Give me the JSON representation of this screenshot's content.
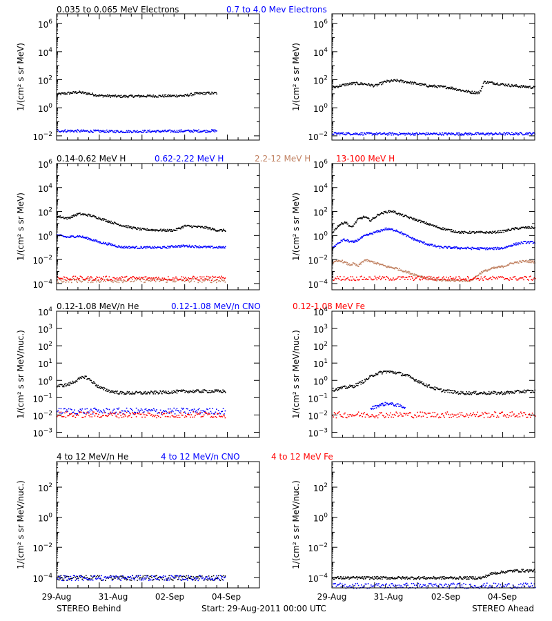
{
  "colors": {
    "black": "#000000",
    "blue": "#0000ff",
    "tan": "#c08060",
    "red": "#ff0000"
  },
  "footer": {
    "left": "STEREO Behind",
    "center": "Start: 29-Aug-2011 00:00 UTC",
    "right": "STEREO Ahead"
  },
  "x_tick_labels": [
    "29-Aug",
    "31-Aug",
    "02-Sep",
    "04-Sep"
  ],
  "chart_data": [
    {
      "type": "scatter",
      "panel": "electrons-behind",
      "y_scale": "log",
      "ylim": [
        0.005,
        5000000
      ],
      "y_tick_exponents": [
        -2,
        0,
        2,
        4,
        6
      ],
      "ylabel": "1/(cm² s sr MeV)",
      "x": [
        "2011-08-29",
        "2011-09-05T12:00"
      ],
      "series": [
        {
          "name": "0.035 to 0.065 MeV Electrons",
          "color": "black",
          "points": [
            [
              0,
              10
            ],
            [
              0.5,
              12
            ],
            [
              1,
              14
            ],
            [
              1.5,
              11
            ],
            [
              2,
              8
            ],
            [
              3,
              7
            ],
            [
              4,
              7.5
            ],
            [
              5,
              7.5
            ],
            [
              6,
              8
            ],
            [
              6.5,
              11
            ],
            [
              7,
              12
            ],
            [
              7.5,
              12
            ]
          ]
        },
        {
          "name": "0.7 to 4.0 Mev Electrons",
          "color": "blue",
          "points": [
            [
              0,
              0.025
            ],
            [
              1,
              0.024
            ],
            [
              2,
              0.023
            ],
            [
              3,
              0.022
            ],
            [
              4,
              0.023
            ],
            [
              5,
              0.023
            ],
            [
              6,
              0.024
            ],
            [
              7,
              0.024
            ],
            [
              7.5,
              0.025
            ]
          ]
        }
      ]
    },
    {
      "type": "scatter",
      "panel": "electrons-ahead",
      "y_scale": "log",
      "ylim": [
        0.005,
        5000000
      ],
      "y_tick_exponents": [
        -2,
        0,
        2,
        4,
        6
      ],
      "ylabel": "1/(cm² s sr MeV)",
      "x": [
        "2011-08-29",
        "2011-09-05T12:00"
      ],
      "series": [
        {
          "name": "0.035 to 0.065 MeV Electrons",
          "color": "black",
          "points": [
            [
              0,
              30
            ],
            [
              0.5,
              45
            ],
            [
              1,
              60
            ],
            [
              1.5,
              55
            ],
            [
              2,
              40
            ],
            [
              2.5,
              80
            ],
            [
              3,
              95
            ],
            [
              3.5,
              75
            ],
            [
              4,
              55
            ],
            [
              4.5,
              40
            ],
            [
              5,
              35
            ],
            [
              5.5,
              30
            ],
            [
              6,
              20
            ],
            [
              6.5,
              14
            ],
            [
              6.9,
              13
            ],
            [
              7.1,
              75
            ],
            [
              7.5,
              65
            ],
            [
              8,
              50
            ],
            [
              8.5,
              40
            ],
            [
              9,
              35
            ],
            [
              9.5,
              30
            ]
          ]
        },
        {
          "name": "0.7 to 4.0 Mev Electrons",
          "color": "blue",
          "points": [
            [
              0,
              0.016
            ],
            [
              2,
              0.015
            ],
            [
              4,
              0.015
            ],
            [
              6,
              0.015
            ],
            [
              8,
              0.015
            ],
            [
              9.5,
              0.016
            ]
          ]
        }
      ]
    },
    {
      "type": "scatter",
      "panel": "protons-behind",
      "y_scale": "log",
      "ylim": [
        3e-05,
        1000000
      ],
      "y_tick_exponents": [
        -4,
        -2,
        0,
        2,
        4,
        6
      ],
      "ylabel": "1/(cm² s sr MeV)",
      "x": [
        "2011-08-29",
        "2011-09-05T12:00"
      ],
      "series": [
        {
          "name": "0.14-0.62 MeV H",
          "color": "black",
          "points": [
            [
              0,
              45
            ],
            [
              0.5,
              30
            ],
            [
              1,
              70
            ],
            [
              1.5,
              55
            ],
            [
              2,
              30
            ],
            [
              2.5,
              15
            ],
            [
              3,
              8
            ],
            [
              3.5,
              5
            ],
            [
              4,
              3.5
            ],
            [
              5,
              3
            ],
            [
              5.5,
              3
            ],
            [
              6,
              7
            ],
            [
              6.5,
              6
            ],
            [
              7,
              5
            ],
            [
              7.5,
              3
            ],
            [
              7.9,
              3
            ]
          ]
        },
        {
          "name": "0.62-2.22 MeV H",
          "color": "blue",
          "points": [
            [
              0,
              1.2
            ],
            [
              0.5,
              0.8
            ],
            [
              1,
              1
            ],
            [
              1.5,
              0.6
            ],
            [
              2,
              0.3
            ],
            [
              2.5,
              0.2
            ],
            [
              3,
              0.12
            ],
            [
              4,
              0.11
            ],
            [
              5,
              0.11
            ],
            [
              5.5,
              0.14
            ],
            [
              6,
              0.15
            ],
            [
              7,
              0.12
            ],
            [
              7.9,
              0.11
            ]
          ]
        },
        {
          "name": "2.2-12 MeV H",
          "color": "tan",
          "points": [
            [
              0,
              0.0002
            ],
            [
              4,
              0.0002
            ],
            [
              7.9,
              0.0002
            ]
          ]
        },
        {
          "name": "13-100 MeV H",
          "color": "red",
          "points": [
            [
              0,
              0.0003
            ],
            [
              4,
              0.0003
            ],
            [
              7.9,
              0.0003
            ]
          ]
        }
      ]
    },
    {
      "type": "scatter",
      "panel": "protons-ahead",
      "y_scale": "log",
      "ylim": [
        3e-05,
        1000000
      ],
      "y_tick_exponents": [
        -4,
        -2,
        0,
        2,
        4,
        6
      ],
      "ylabel": "1/(cm² s sr MeV)",
      "x": [
        "2011-08-29",
        "2011-09-05T12:00"
      ],
      "series": [
        {
          "name": "0.14-0.62 MeV H",
          "color": "black",
          "points": [
            [
              0,
              2
            ],
            [
              0.3,
              8
            ],
            [
              0.6,
              15
            ],
            [
              0.9,
              5
            ],
            [
              1.2,
              25
            ],
            [
              1.5,
              40
            ],
            [
              1.8,
              20
            ],
            [
              2.2,
              70
            ],
            [
              2.5,
              100
            ],
            [
              2.8,
              120
            ],
            [
              3.2,
              60
            ],
            [
              3.6,
              35
            ],
            [
              4,
              20
            ],
            [
              4.5,
              10
            ],
            [
              5,
              5
            ],
            [
              5.5,
              3
            ],
            [
              6,
              2
            ],
            [
              7,
              2
            ],
            [
              7.5,
              2
            ],
            [
              8,
              2.5
            ],
            [
              8.5,
              4
            ],
            [
              9,
              5
            ],
            [
              9.5,
              5
            ]
          ]
        },
        {
          "name": "0.62-2.22 MeV H",
          "color": "blue",
          "points": [
            [
              0,
              0.1
            ],
            [
              0.5,
              0.5
            ],
            [
              1,
              0.3
            ],
            [
              1.5,
              1
            ],
            [
              2,
              2
            ],
            [
              2.5,
              4
            ],
            [
              3,
              3
            ],
            [
              3.5,
              1
            ],
            [
              4,
              0.4
            ],
            [
              4.5,
              0.2
            ],
            [
              5,
              0.12
            ],
            [
              6,
              0.1
            ],
            [
              7,
              0.09
            ],
            [
              7.5,
              0.09
            ],
            [
              8,
              0.1
            ],
            [
              8.5,
              0.2
            ],
            [
              9,
              0.3
            ],
            [
              9.5,
              0.3
            ]
          ]
        },
        {
          "name": "2.2-12 MeV H",
          "color": "tan",
          "points": [
            [
              0,
              0.006
            ],
            [
              0.4,
              0.009
            ],
            [
              0.8,
              0.004
            ],
            [
              1,
              0.005
            ],
            [
              1.2,
              0.003
            ],
            [
              1.5,
              0.01
            ],
            [
              2,
              0.006
            ],
            [
              2.5,
              0.003
            ],
            [
              3,
              0.002
            ],
            [
              3.5,
              0.001
            ],
            [
              4,
              0.0005
            ],
            [
              4.5,
              0.0003
            ],
            [
              5,
              0.0002
            ],
            [
              6.5,
              0.0002
            ],
            [
              7,
              0.001
            ],
            [
              7.5,
              0.002
            ],
            [
              8,
              0.003
            ],
            [
              8.5,
              0.006
            ],
            [
              9,
              0.008
            ],
            [
              9.5,
              0.007
            ]
          ]
        },
        {
          "name": "13-100 MeV H",
          "color": "red",
          "points": [
            [
              0,
              0.0003
            ],
            [
              4,
              0.0003
            ],
            [
              9.5,
              0.0003
            ]
          ]
        }
      ]
    },
    {
      "type": "scatter",
      "panel": "ions-low-behind",
      "y_scale": "log",
      "ylim": [
        0.0005,
        10000
      ],
      "y_tick_exponents": [
        -3,
        -2,
        -1,
        0,
        1,
        2,
        3,
        4
      ],
      "ylabel": "1/(cm² s sr MeV/nuc.)",
      "x": [
        "2011-08-29",
        "2011-09-05T12:00"
      ],
      "series": [
        {
          "name": "0.12-1.08 MeV/n He",
          "color": "black",
          "points": [
            [
              0,
              0.5
            ],
            [
              0.5,
              0.6
            ],
            [
              1,
              1.2
            ],
            [
              1.3,
              1.8
            ],
            [
              1.6,
              1
            ],
            [
              2,
              0.4
            ],
            [
              2.5,
              0.25
            ],
            [
              3,
              0.2
            ],
            [
              4,
              0.2
            ],
            [
              5,
              0.22
            ],
            [
              6,
              0.25
            ],
            [
              7,
              0.25
            ],
            [
              7.9,
              0.25
            ]
          ]
        },
        {
          "name": "0.12-1.08 MeV/n CNO",
          "color": "blue",
          "points": [
            [
              0,
              0.018
            ],
            [
              4,
              0.018
            ],
            [
              7.9,
              0.018
            ]
          ]
        },
        {
          "name": "0.12-1.08 MeV Fe",
          "color": "red",
          "points": [
            [
              0,
              0.011
            ],
            [
              4,
              0.011
            ],
            [
              7.9,
              0.011
            ]
          ]
        }
      ]
    },
    {
      "type": "scatter",
      "panel": "ions-low-ahead",
      "y_scale": "log",
      "ylim": [
        0.0005,
        10000
      ],
      "y_tick_exponents": [
        -3,
        -2,
        -1,
        0,
        1,
        2,
        3,
        4
      ],
      "ylabel": "1/(cm² s sr MeV/nuc.)",
      "x": [
        "2011-08-29",
        "2011-09-05T12:00"
      ],
      "series": [
        {
          "name": "0.12-1.08 MeV/n He",
          "color": "black",
          "points": [
            [
              0,
              0.3
            ],
            [
              0.5,
              0.4
            ],
            [
              1,
              0.5
            ],
            [
              1.5,
              1
            ],
            [
              2,
              2.5
            ],
            [
              2.5,
              3.5
            ],
            [
              3,
              3
            ],
            [
              3.5,
              2
            ],
            [
              4,
              1
            ],
            [
              4.5,
              0.5
            ],
            [
              5,
              0.3
            ],
            [
              6,
              0.2
            ],
            [
              7,
              0.2
            ],
            [
              8,
              0.2
            ],
            [
              9,
              0.25
            ],
            [
              9.5,
              0.25
            ]
          ]
        },
        {
          "name": "0.12-1.08 MeV/n CNO",
          "color": "blue",
          "points": [
            [
              1.8,
              0.025
            ],
            [
              2.2,
              0.04
            ],
            [
              2.6,
              0.05
            ],
            [
              3,
              0.04
            ],
            [
              3.4,
              0.03
            ]
          ]
        },
        {
          "name": "0.12-1.08 MeV Fe",
          "color": "red",
          "points": [
            [
              0,
              0.011
            ],
            [
              4,
              0.011
            ],
            [
              9.5,
              0.011
            ]
          ]
        }
      ]
    },
    {
      "type": "scatter",
      "panel": "ions-high-behind",
      "y_scale": "log",
      "ylim": [
        2e-05,
        5000
      ],
      "y_tick_exponents": [
        -4,
        -2,
        0,
        2
      ],
      "ylabel": "1/(cm² s sr MeV/nuc.)",
      "x": [
        "2011-08-29",
        "2011-09-05T12:00"
      ],
      "series": [
        {
          "name": "4 to 12 MeV/n He",
          "color": "black",
          "points": [
            [
              0,
              0.0001
            ],
            [
              4,
              0.0001
            ],
            [
              7.9,
              0.0001
            ]
          ]
        },
        {
          "name": "4 to 12 MeV/n CNO",
          "color": "blue",
          "points": [
            [
              0,
              0.0001
            ],
            [
              4,
              0.0001
            ],
            [
              7.9,
              0.0001
            ]
          ]
        },
        {
          "name": "4 to 12 MeV Fe",
          "color": "red",
          "points": []
        }
      ]
    },
    {
      "type": "scatter",
      "panel": "ions-high-ahead",
      "y_scale": "log",
      "ylim": [
        2e-05,
        5000
      ],
      "y_tick_exponents": [
        -4,
        -2,
        0,
        2
      ],
      "ylabel": "1/(cm² s sr MeV/nuc.)",
      "x": [
        "2011-08-29",
        "2011-09-05T12:00"
      ],
      "series": [
        {
          "name": "4 to 12 MeV/n He",
          "color": "black",
          "points": [
            [
              0,
              0.0001
            ],
            [
              4,
              0.0001
            ],
            [
              7,
              0.0001
            ],
            [
              7.5,
              0.0002
            ],
            [
              8.5,
              0.0003
            ],
            [
              9.5,
              0.0003
            ]
          ]
        },
        {
          "name": "4 to 12 MeV/n CNO",
          "color": "blue",
          "points": [
            [
              0,
              3e-05
            ],
            [
              9.5,
              3e-05
            ]
          ]
        },
        {
          "name": "4 to 12 MeV Fe",
          "color": "red",
          "points": []
        }
      ]
    }
  ]
}
